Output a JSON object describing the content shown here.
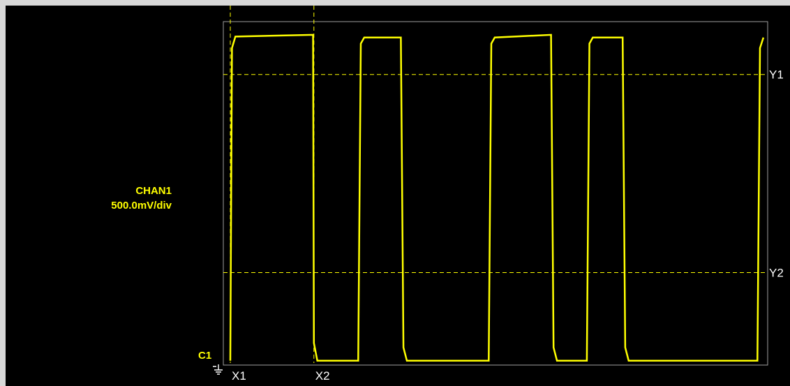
{
  "channel": {
    "name": "CHAN1",
    "scale": "500.0mV/div",
    "marker": "C1"
  },
  "icons": {
    "ground": "ground-reference-icon"
  },
  "colors": {
    "screen_background": "#000000",
    "graticule": "#a0a0a0",
    "trace": "#ffff00",
    "cursor": "#ffff00",
    "cursor_label": "#ffffff",
    "window_frame": "#d8d8d8"
  },
  "cursors": {
    "x1": {
      "label": "X1",
      "value": 0.0
    },
    "x2": {
      "label": "X2",
      "value": 0.98
    },
    "y1": {
      "label": "Y1",
      "value": 3.2
    },
    "y2": {
      "label": "Y2",
      "value": 0.95
    }
  },
  "chart_data": {
    "type": "line",
    "title": "",
    "xlabel": "",
    "ylabel": "",
    "xlim": [
      0,
      6.3
    ],
    "ylim": [
      -0.1,
      3.8
    ],
    "grid": false,
    "legend": "none",
    "series": [
      {
        "name": "",
        "x": [
          0.0,
          0.02,
          0.06,
          0.97,
          0.98,
          1.02,
          1.5,
          1.53,
          1.57,
          2.0,
          2.03,
          2.07,
          3.03,
          3.06,
          3.1,
          3.76,
          3.79,
          3.83,
          4.18,
          4.21,
          4.25,
          4.6,
          4.63,
          4.67,
          6.18,
          6.21,
          6.25
        ],
        "y": [
          -0.05,
          3.5,
          3.63,
          3.65,
          0.15,
          -0.05,
          -0.05,
          3.55,
          3.62,
          3.62,
          0.1,
          -0.05,
          -0.05,
          3.55,
          3.62,
          3.65,
          0.1,
          -0.05,
          -0.05,
          3.55,
          3.62,
          3.62,
          0.1,
          -0.05,
          -0.05,
          3.5,
          3.62
        ]
      }
    ]
  }
}
